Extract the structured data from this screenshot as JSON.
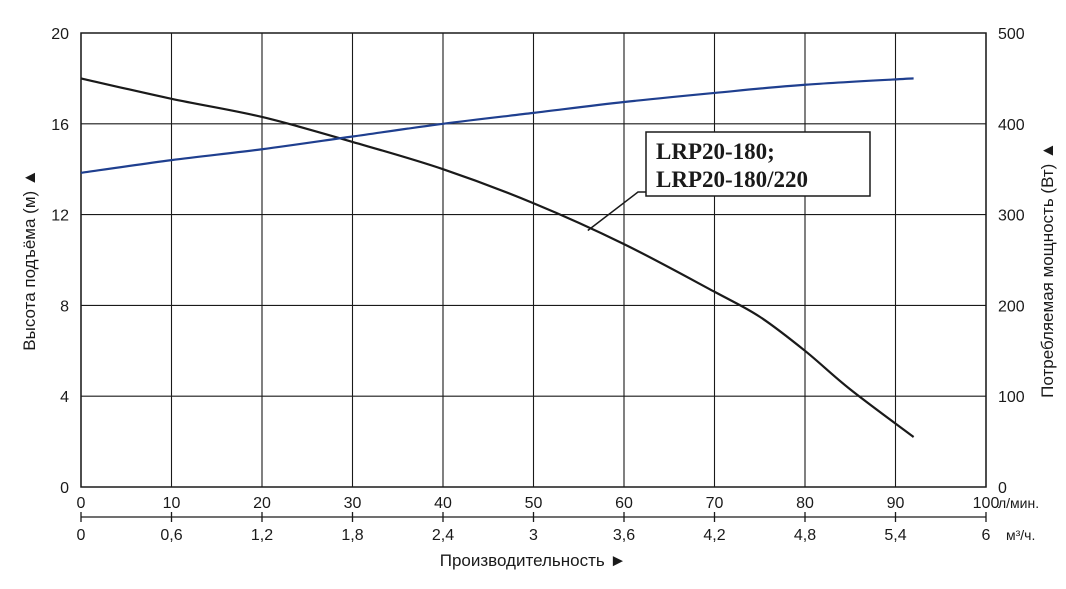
{
  "chart_data": {
    "type": "line",
    "title": "",
    "left_axis": {
      "label": "Высота подъёма (м) ▲",
      "range": [
        0,
        20
      ],
      "ticks": [
        "0",
        "4",
        "8",
        "12",
        "16",
        "20"
      ],
      "tick_values": [
        0,
        4,
        8,
        12,
        16,
        20
      ]
    },
    "right_axis": {
      "label": "Потребляемая мощность (Вт) ▲",
      "range": [
        0,
        500
      ],
      "ticks": [
        "0",
        "100",
        "200",
        "300",
        "400",
        "500"
      ],
      "tick_values": [
        0,
        100,
        200,
        300,
        400,
        500
      ]
    },
    "x_axis_primary": {
      "unit": "л/мин.",
      "range": [
        0,
        100
      ],
      "ticks": [
        "0",
        "10",
        "20",
        "30",
        "40",
        "50",
        "60",
        "70",
        "80",
        "90",
        "100"
      ],
      "tick_values": [
        0,
        10,
        20,
        30,
        40,
        50,
        60,
        70,
        80,
        90,
        100
      ]
    },
    "x_axis_secondary": {
      "unit": "м³/ч.",
      "range": [
        0,
        6
      ],
      "ticks": [
        "0",
        "0,6",
        "1,2",
        "1,8",
        "2,4",
        "3",
        "3,6",
        "4,2",
        "4,8",
        "5,4",
        "6"
      ],
      "tick_values": [
        0,
        0.6,
        1.2,
        1.8,
        2.4,
        3,
        3.6,
        4.2,
        4.8,
        5.4,
        6
      ]
    },
    "xlabel": "Производительность ►",
    "grid": true,
    "series": [
      {
        "name": "",
        "axis": "left",
        "color": "#1a1a1a",
        "x": [
          0,
          10,
          20,
          30,
          40,
          50,
          60,
          70,
          75,
          80,
          85,
          92
        ],
        "y": [
          18.0,
          17.1,
          16.3,
          15.2,
          14.0,
          12.5,
          10.7,
          8.6,
          7.5,
          6.0,
          4.3,
          2.2
        ]
      },
      {
        "name": "",
        "axis": "right",
        "color": "#1f3f8f",
        "x": [
          0,
          10,
          20,
          30,
          40,
          50,
          60,
          70,
          80,
          92
        ],
        "y": [
          346,
          360,
          372,
          386,
          400,
          412,
          424,
          434,
          443,
          450
        ]
      }
    ],
    "annotation": {
      "lines": [
        "LRP20-180;",
        "LRP20-180/220"
      ],
      "points_to": {
        "x": 56,
        "y": 11.3,
        "axis": "left"
      }
    }
  }
}
